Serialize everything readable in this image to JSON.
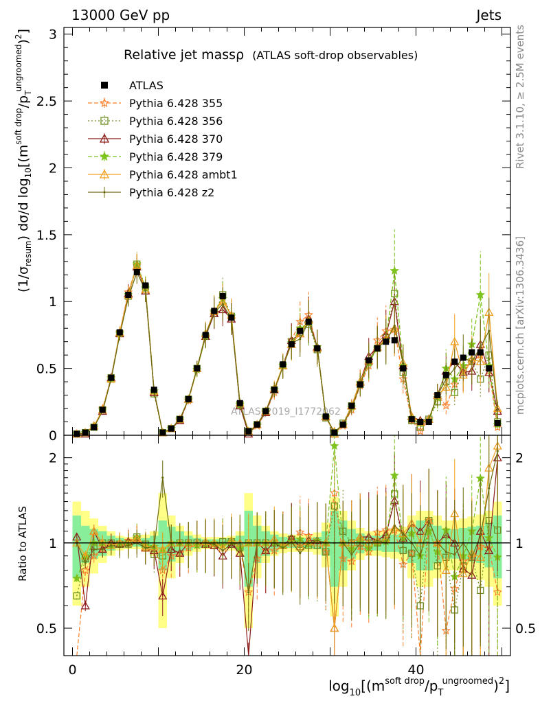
{
  "header": {
    "left": "13000 GeV pp",
    "right": "Jets"
  },
  "title": {
    "main": "Relative jet massρ",
    "sub": "(ATLAS soft-drop observables)"
  },
  "ylabel_main": {
    "prefix": "(1/σ",
    "sub1": "resum",
    "mid": ") dσ/d log",
    "sub2": "10",
    "br": "[(m",
    "sup1": "soft drop",
    "slash": "/p",
    "sub3": "T",
    "sup2": "ungroomed",
    "end": ")",
    "sup3": "2",
    "close": "]"
  },
  "ylabel_ratio": "Ratio to ATLAS",
  "xlabel": {
    "pre": "log",
    "sub": "10",
    "br": "[(m",
    "sup1": "soft drop",
    "slash": "/p",
    "sub2": "T",
    "sup2": "ungroomed",
    "end": ")",
    "sup3": "2",
    "close": "]"
  },
  "side_text": {
    "rivet": "Rivet 3.1.10, ≥ 2.5M events",
    "mcplots": "mcplots.cern.ch [arXiv:1306.3436]"
  },
  "watermark": "ATLAS_2019_I1772062",
  "legend": [
    {
      "label": "ATLAS",
      "color": "#000000",
      "marker": "square-filled",
      "dash": "none"
    },
    {
      "label": "Pythia 6.428 355",
      "color": "#ff7f2a",
      "marker": "star-open",
      "dash": "dashed"
    },
    {
      "label": "Pythia 6.428 356",
      "color": "#6b8e23",
      "marker": "square-open",
      "dash": "dotted"
    },
    {
      "label": "Pythia 6.428 370",
      "color": "#8b1a1a",
      "marker": "triangle-open",
      "dash": "solid"
    },
    {
      "label": "Pythia 6.428 379",
      "color": "#7ec31e",
      "marker": "star-filled",
      "dash": "dashed"
    },
    {
      "label": "Pythia 6.428 ambt1",
      "color": "#f0a020",
      "marker": "triangle-open",
      "dash": "solid"
    },
    {
      "label": "Pythia 6.428 z2",
      "color": "#6b6b10",
      "marker": "dot",
      "dash": "solid"
    }
  ],
  "chart_data": [
    {
      "type": "line",
      "panel": "main",
      "xlim": [
        -1,
        51
      ],
      "ylim": [
        0,
        3.05
      ],
      "yticks": [
        0,
        0.5,
        1,
        1.5,
        2,
        2.5,
        3
      ],
      "ytick_labels": [
        "0",
        "0.5",
        "1",
        "1.5",
        "2",
        "2.5",
        "3"
      ],
      "x": [
        0.5,
        1.5,
        2.5,
        3.5,
        4.5,
        5.5,
        6.5,
        7.5,
        8.5,
        9.5,
        10.5,
        11.5,
        12.5,
        13.5,
        14.5,
        15.5,
        16.5,
        17.5,
        18.5,
        19.5,
        20.5,
        21.5,
        22.5,
        23.5,
        24.5,
        25.5,
        26.5,
        27.5,
        28.5,
        29.5,
        30.5,
        31.5,
        32.5,
        33.5,
        34.5,
        35.5,
        36.5,
        37.5,
        38.5,
        39.5,
        40.5,
        41.5,
        42.5,
        43.5,
        44.5,
        45.5,
        46.5,
        47.5,
        48.5,
        49.5
      ],
      "series": [
        {
          "name": "ATLAS",
          "values": [
            0.01,
            0.02,
            0.06,
            0.19,
            0.43,
            0.77,
            1.05,
            1.22,
            1.12,
            0.34,
            0.02,
            0.05,
            0.12,
            0.27,
            0.5,
            0.75,
            0.93,
            1.04,
            0.88,
            0.24,
            0.03,
            0.08,
            0.18,
            0.34,
            0.53,
            0.68,
            0.78,
            0.85,
            0.65,
            0.14,
            0.02,
            0.08,
            0.22,
            0.38,
            0.56,
            0.65,
            0.7,
            0.71,
            0.5,
            0.12,
            0.1,
            0.1,
            0.3,
            0.45,
            0.55,
            0.58,
            0.62,
            0.62,
            0.5,
            0.09
          ]
        },
        {
          "name": "Pythia 6.428 355",
          "values": [
            0.01,
            0.02,
            0.06,
            0.2,
            0.43,
            0.77,
            1.07,
            1.27,
            1.1,
            0.33,
            0.02,
            0.05,
            0.11,
            0.26,
            0.49,
            0.74,
            0.92,
            1.02,
            0.89,
            0.23,
            0.02,
            0.07,
            0.17,
            0.32,
            0.52,
            0.71,
            0.85,
            0.9,
            0.66,
            0.13,
            0.03,
            0.07,
            0.19,
            0.37,
            0.52,
            0.71,
            0.78,
            0.79,
            0.42,
            0.11,
            0.03,
            0.12,
            0.3,
            0.22,
            0.38,
            0.5,
            0.55,
            0.6,
            0.48,
            0.06
          ]
        },
        {
          "name": "Pythia 6.428 356",
          "values": [
            0.01,
            0.02,
            0.06,
            0.19,
            0.43,
            0.76,
            1.04,
            1.28,
            1.11,
            0.31,
            0.02,
            0.05,
            0.12,
            0.27,
            0.5,
            0.74,
            0.91,
            1.05,
            0.89,
            0.23,
            0.03,
            0.08,
            0.18,
            0.34,
            0.52,
            0.7,
            0.77,
            0.83,
            0.64,
            0.13,
            0.02,
            0.09,
            0.22,
            0.38,
            0.55,
            0.65,
            0.73,
            1.06,
            0.47,
            0.11,
            0.06,
            0.12,
            0.25,
            0.4,
            0.32,
            0.48,
            0.55,
            0.42,
            0.6,
            0.1
          ]
        },
        {
          "name": "Pythia 6.428 370",
          "values": [
            0.01,
            0.01,
            0.07,
            0.18,
            0.43,
            0.76,
            1.06,
            1.26,
            1.08,
            0.32,
            0.02,
            0.05,
            0.11,
            0.27,
            0.5,
            0.74,
            0.91,
            0.94,
            0.87,
            0.22,
            0.01,
            0.08,
            0.17,
            0.34,
            0.52,
            0.71,
            0.76,
            0.87,
            0.66,
            0.14,
            0.01,
            0.08,
            0.22,
            0.4,
            0.59,
            0.66,
            0.75,
            1.0,
            0.52,
            0.14,
            0.11,
            0.12,
            0.3,
            0.48,
            0.55,
            0.47,
            0.48,
            0.68,
            0.47,
            0.18
          ]
        },
        {
          "name": "Pythia 6.428 379",
          "values": [
            0.01,
            0.02,
            0.06,
            0.19,
            0.42,
            0.76,
            1.05,
            1.28,
            1.1,
            0.33,
            0.02,
            0.05,
            0.12,
            0.27,
            0.49,
            0.74,
            0.93,
            1.02,
            0.89,
            0.23,
            0.03,
            0.08,
            0.18,
            0.34,
            0.52,
            0.69,
            0.8,
            0.84,
            0.66,
            0.14,
            0.02,
            0.08,
            0.21,
            0.39,
            0.54,
            0.65,
            0.71,
            1.23,
            0.52,
            0.13,
            0.09,
            0.11,
            0.28,
            0.5,
            0.42,
            0.52,
            0.68,
            1.05,
            0.52,
            0.08
          ]
        },
        {
          "name": "Pythia 6.428 ambt1",
          "values": [
            0.01,
            0.02,
            0.07,
            0.19,
            0.42,
            0.77,
            1.05,
            1.27,
            1.09,
            0.33,
            0.02,
            0.05,
            0.12,
            0.27,
            0.5,
            0.76,
            0.93,
            1.0,
            0.9,
            0.24,
            0.03,
            0.08,
            0.18,
            0.35,
            0.52,
            0.68,
            0.76,
            0.86,
            0.65,
            0.14,
            0.01,
            0.08,
            0.22,
            0.4,
            0.56,
            0.66,
            0.72,
            0.8,
            0.54,
            0.14,
            0.1,
            0.12,
            0.3,
            0.36,
            0.7,
            0.45,
            0.57,
            0.55,
            0.92,
            0.2
          ]
        },
        {
          "name": "Pythia 6.428 z2",
          "values": [
            0.01,
            0.02,
            0.06,
            0.18,
            0.42,
            0.75,
            1.03,
            1.22,
            1.08,
            0.33,
            0.02,
            0.05,
            0.12,
            0.27,
            0.5,
            0.75,
            0.92,
            0.98,
            0.87,
            0.24,
            0.02,
            0.08,
            0.18,
            0.34,
            0.51,
            0.69,
            0.72,
            0.85,
            0.66,
            0.14,
            0.02,
            0.08,
            0.2,
            0.38,
            0.56,
            0.66,
            0.7,
            0.82,
            0.54,
            0.12,
            0.09,
            0.12,
            0.3,
            0.42,
            0.5,
            0.58,
            0.55,
            0.66,
            0.78,
            0.19
          ]
        }
      ]
    },
    {
      "type": "line",
      "panel": "ratio",
      "xlim": [
        -1,
        51
      ],
      "ylim": [
        0.4,
        2.4
      ],
      "log_y": true,
      "yticks": [
        0.5,
        1,
        2
      ],
      "ytick_labels": [
        "0.5",
        "1",
        "2"
      ],
      "xticks": [
        0,
        20,
        40
      ],
      "xtick_labels": [
        "0",
        "20",
        "40"
      ],
      "reference": 1,
      "x": [
        0.5,
        1.5,
        2.5,
        3.5,
        4.5,
        5.5,
        6.5,
        7.5,
        8.5,
        9.5,
        10.5,
        11.5,
        12.5,
        13.5,
        14.5,
        15.5,
        16.5,
        17.5,
        18.5,
        19.5,
        20.5,
        21.5,
        22.5,
        23.5,
        24.5,
        25.5,
        26.5,
        27.5,
        28.5,
        29.5,
        30.5,
        31.5,
        32.5,
        33.5,
        34.5,
        35.5,
        36.5,
        37.5,
        38.5,
        39.5,
        40.5,
        41.5,
        42.5,
        43.5,
        44.5,
        45.5,
        46.5,
        47.5,
        48.5,
        49.5
      ],
      "band_inner": [
        0.25,
        0.15,
        0.12,
        0.1,
        0.06,
        0.04,
        0.03,
        0.03,
        0.04,
        0.06,
        0.2,
        0.14,
        0.1,
        0.06,
        0.04,
        0.03,
        0.03,
        0.03,
        0.04,
        0.06,
        0.3,
        0.15,
        0.1,
        0.07,
        0.05,
        0.04,
        0.04,
        0.04,
        0.05,
        0.1,
        0.3,
        0.2,
        0.12,
        0.08,
        0.06,
        0.06,
        0.07,
        0.07,
        0.08,
        0.15,
        0.2,
        0.2,
        0.15,
        0.12,
        0.12,
        0.13,
        0.14,
        0.15,
        0.18,
        0.25
      ],
      "band_outer": [
        0.4,
        0.3,
        0.22,
        0.15,
        0.1,
        0.06,
        0.05,
        0.05,
        0.07,
        0.1,
        0.5,
        0.25,
        0.15,
        0.1,
        0.07,
        0.05,
        0.05,
        0.05,
        0.06,
        0.1,
        0.5,
        0.25,
        0.15,
        0.1,
        0.08,
        0.07,
        0.07,
        0.07,
        0.09,
        0.18,
        0.45,
        0.3,
        0.2,
        0.13,
        0.1,
        0.1,
        0.11,
        0.12,
        0.14,
        0.25,
        0.3,
        0.3,
        0.25,
        0.2,
        0.2,
        0.22,
        0.24,
        0.26,
        0.3,
        0.4
      ],
      "series": [
        {
          "name": "Pythia 6.428 355",
          "values": [
            0.35,
            0.8,
            0.9,
            0.95,
            1.0,
            1.0,
            1.02,
            1.04,
            0.98,
            0.97,
            0.8,
            0.9,
            0.92,
            0.96,
            0.98,
            0.99,
            0.99,
            0.98,
            1.01,
            0.96,
            0.67,
            0.88,
            0.94,
            0.94,
            0.98,
            1.04,
            1.09,
            1.06,
            1.02,
            0.93,
            1.5,
            0.88,
            0.86,
            0.97,
            0.93,
            1.09,
            1.11,
            1.11,
            0.84,
            0.92,
            0.3,
            1.2,
            1.0,
            0.49,
            0.69,
            0.86,
            0.89,
            0.97,
            0.96,
            0.67
          ]
        },
        {
          "name": "Pythia 6.428 356",
          "values": [
            0.65,
            0.88,
            0.97,
            1.0,
            1.0,
            0.99,
            0.99,
            1.05,
            0.99,
            0.91,
            0.9,
            0.95,
            1.0,
            1.0,
            1.0,
            0.99,
            0.98,
            1.01,
            1.01,
            0.96,
            1.0,
            1.0,
            1.0,
            1.0,
            0.98,
            1.03,
            0.99,
            0.98,
            0.98,
            0.93,
            1.35,
            1.1,
            1.0,
            1.0,
            0.98,
            1.0,
            1.04,
            1.49,
            0.94,
            0.92,
            0.6,
            1.2,
            0.83,
            0.89,
            0.58,
            0.83,
            0.89,
            0.68,
            1.2,
            1.11
          ]
        },
        {
          "name": "Pythia 6.428 370",
          "values": [
            1.05,
            0.6,
            1.1,
            0.95,
            1.0,
            0.99,
            1.01,
            1.03,
            0.96,
            0.94,
            0.65,
            0.95,
            0.92,
            1.0,
            1.0,
            0.99,
            0.98,
            0.9,
            0.99,
            0.92,
            0.35,
            1.0,
            0.94,
            1.0,
            0.98,
            1.04,
            0.97,
            1.02,
            1.02,
            1.0,
            0.5,
            1.0,
            1.0,
            1.05,
            1.05,
            1.02,
            1.07,
            1.41,
            1.04,
            1.17,
            1.1,
            1.2,
            1.0,
            1.07,
            1.0,
            0.81,
            0.77,
            1.1,
            0.94,
            2.0
          ]
        },
        {
          "name": "Pythia 6.428 379",
          "values": [
            0.75,
            0.9,
            1.0,
            1.0,
            0.98,
            0.99,
            1.0,
            1.05,
            0.98,
            0.97,
            0.95,
            1.0,
            1.0,
            1.0,
            0.98,
            0.99,
            1.0,
            0.98,
            1.01,
            0.96,
            1.0,
            1.0,
            1.0,
            1.0,
            0.98,
            1.01,
            1.03,
            0.99,
            1.02,
            1.0,
            2.2,
            1.0,
            0.95,
            1.03,
            0.96,
            1.0,
            1.01,
            1.73,
            1.04,
            1.08,
            0.9,
            1.1,
            0.93,
            1.11,
            0.76,
            0.9,
            1.1,
            1.69,
            1.04,
            0.89
          ]
        },
        {
          "name": "Pythia 6.428 ambt1",
          "values": [
            1.0,
            0.9,
            1.1,
            1.0,
            0.98,
            1.0,
            1.0,
            1.04,
            0.97,
            0.97,
            0.95,
            1.0,
            1.0,
            1.0,
            1.0,
            1.01,
            1.0,
            0.96,
            1.02,
            1.0,
            1.0,
            1.0,
            1.0,
            1.03,
            0.98,
            1.0,
            0.97,
            1.01,
            1.0,
            1.0,
            0.5,
            1.0,
            1.0,
            1.05,
            1.0,
            1.02,
            1.03,
            1.13,
            1.08,
            1.17,
            1.0,
            1.2,
            1.0,
            0.8,
            1.27,
            0.78,
            0.92,
            0.89,
            1.84,
            2.2
          ]
        },
        {
          "name": "Pythia 6.428 z2",
          "values": [
            1.0,
            0.85,
            0.95,
            0.95,
            0.98,
            0.97,
            0.98,
            1.0,
            0.96,
            0.97,
            1.7,
            1.0,
            1.0,
            1.0,
            1.0,
            1.0,
            0.99,
            0.94,
            0.99,
            1.0,
            0.67,
            1.0,
            1.0,
            1.0,
            0.96,
            1.01,
            0.92,
            1.0,
            1.02,
            1.0,
            1.0,
            1.0,
            0.91,
            1.0,
            1.0,
            1.02,
            1.0,
            1.15,
            1.08,
            1.0,
            0.9,
            1.2,
            1.0,
            0.93,
            0.91,
            1.0,
            0.89,
            1.06,
            1.56,
            2.11
          ]
        }
      ]
    }
  ]
}
